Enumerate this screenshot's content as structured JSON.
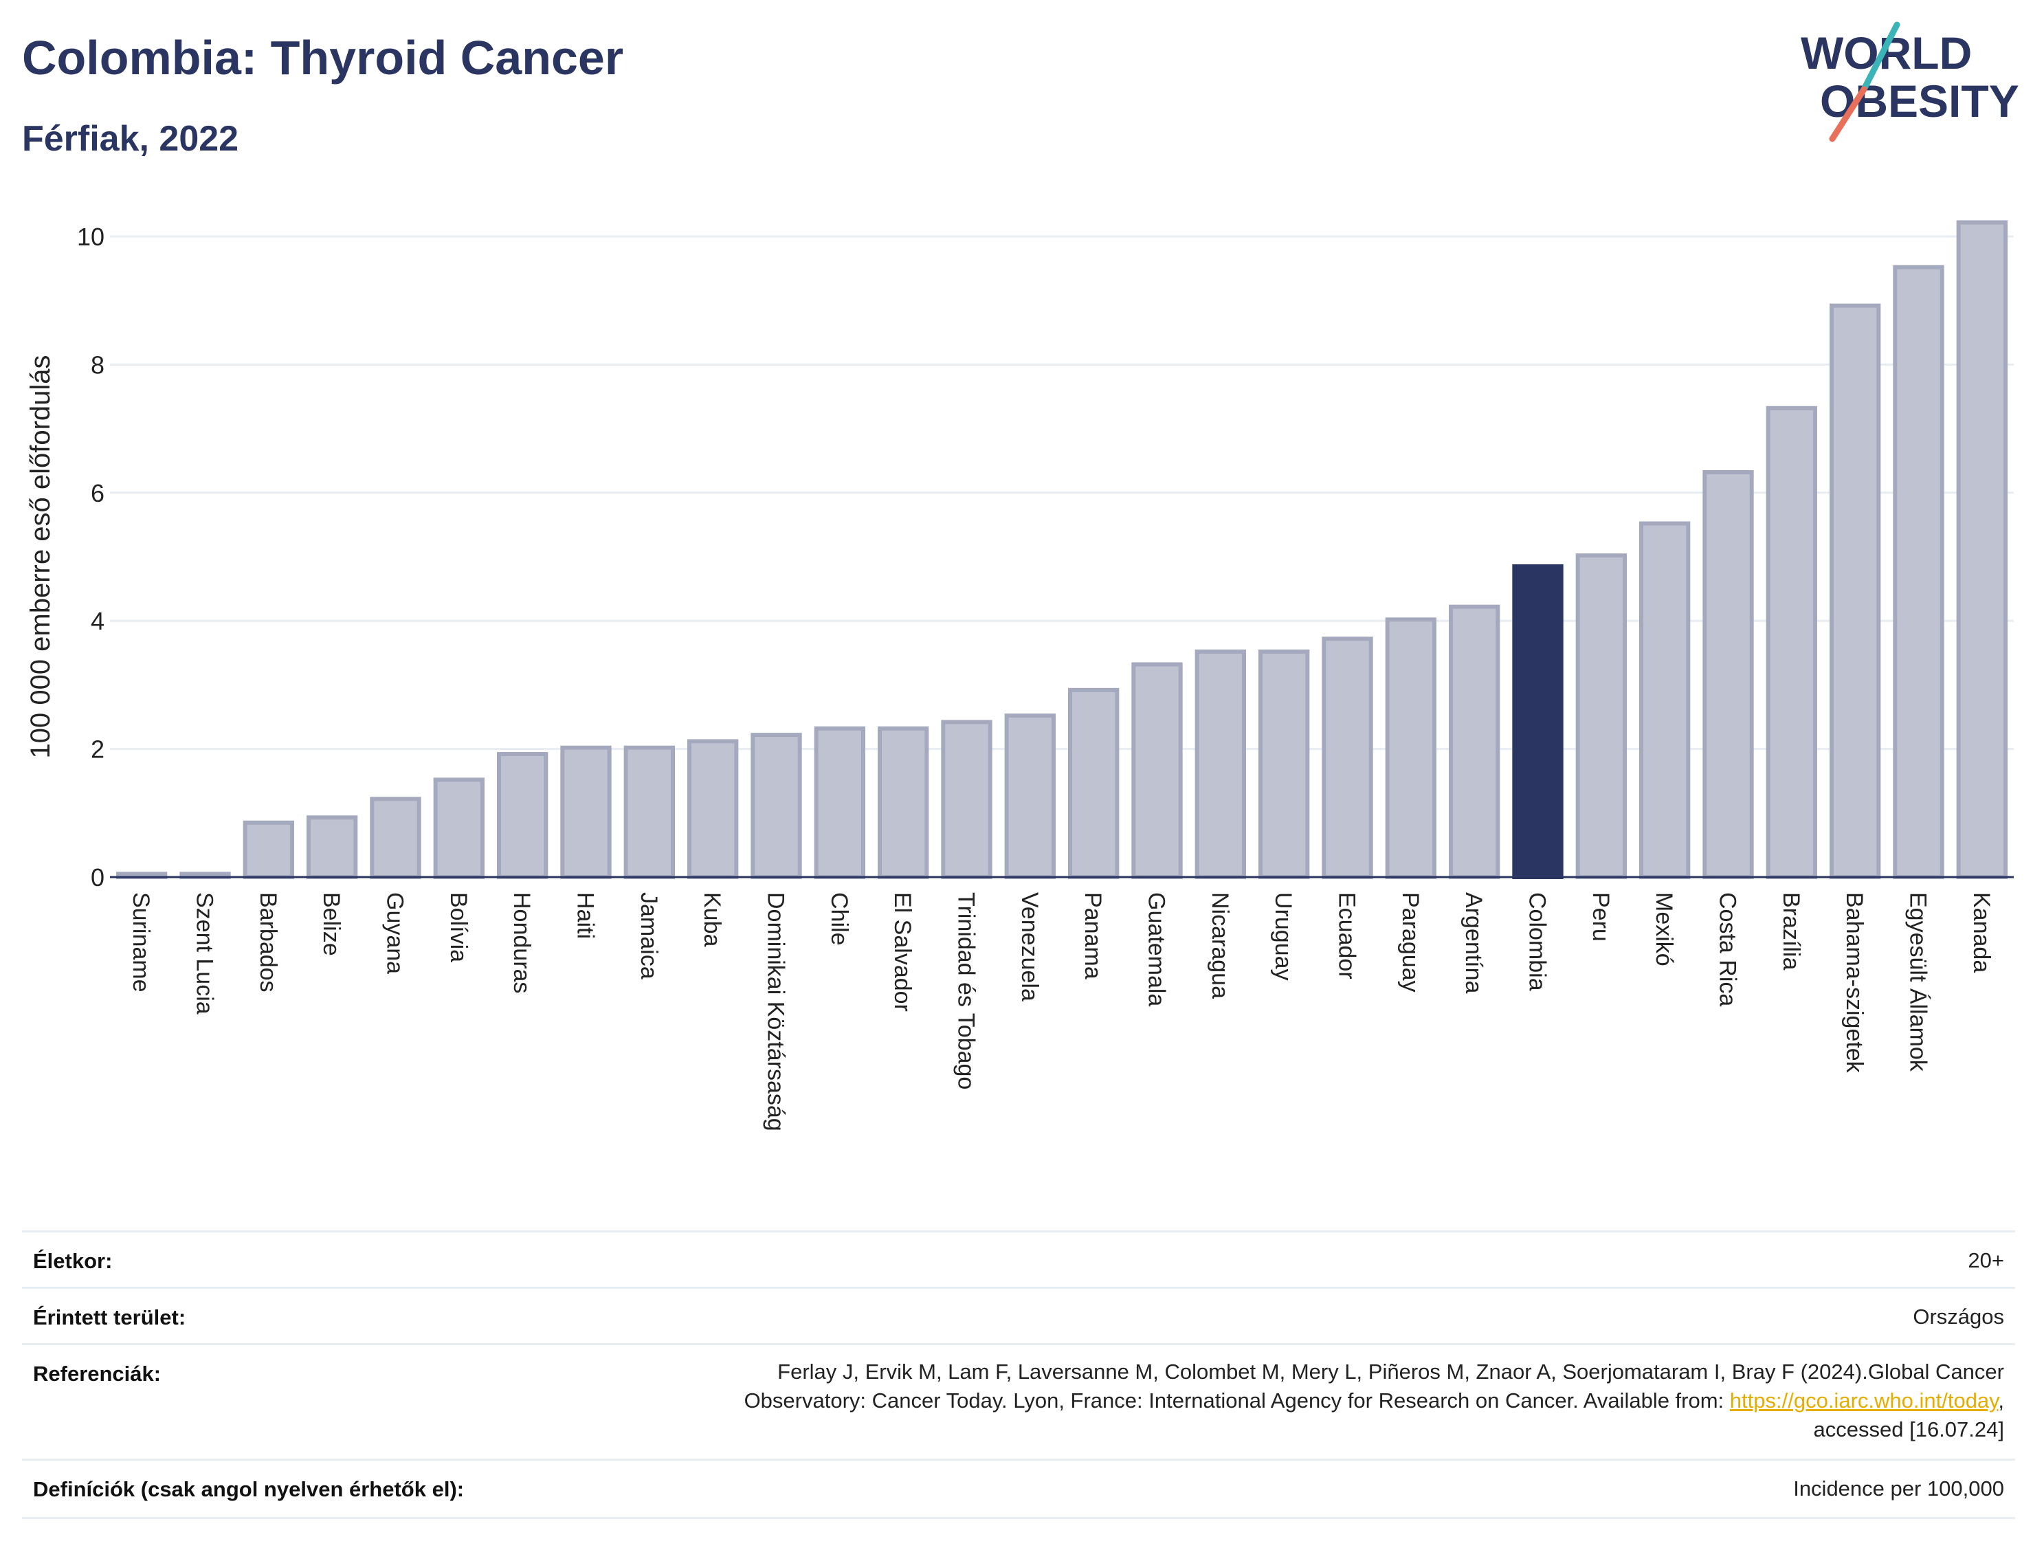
{
  "header": {
    "title": "Colombia: Thyroid Cancer",
    "subtitle": "Férfiak, 2022",
    "logo_line1": "WORLD",
    "logo_line2": "OBESITY"
  },
  "colors": {
    "bar": "#bfc3d1",
    "bar_border": "#a4a9be",
    "highlight": "#2a3562",
    "text": "#2a3562",
    "grid": "#e8edf2",
    "logo_slash_top": "#3bb4b8",
    "logo_slash_bottom": "#e8705a"
  },
  "chart_data": {
    "type": "bar",
    "title": "Colombia: Thyroid Cancer",
    "subtitle": "Férfiak, 2022",
    "ylabel": "100 000 emberre eső előfordulás",
    "xlabel": "",
    "ylim": [
      0,
      10.5
    ],
    "yticks": [
      0,
      2,
      4,
      6,
      8,
      10
    ],
    "grid": true,
    "highlight": "Colombia",
    "categories": [
      "Suriname",
      "Szent Lucia",
      "Barbados",
      "Belize",
      "Guyana",
      "Bolívia",
      "Honduras",
      "Haiti",
      "Jamaica",
      "Kuba",
      "Dominikai Köztársaság",
      "Chile",
      "El Salvador",
      "Trinidad és Tobago",
      "Venezuela",
      "Panama",
      "Guatemala",
      "Nicaragua",
      "Uruguay",
      "Ecuador",
      "Paraguay",
      "Argentína",
      "Colombia",
      "Peru",
      "Mexikó",
      "Costa Rica",
      "Brazília",
      "Bahama-szigetek",
      "Egyesült Államok",
      "Kanada"
    ],
    "values": [
      0.05,
      0.05,
      0.85,
      0.93,
      1.22,
      1.52,
      1.92,
      2.02,
      2.02,
      2.12,
      2.22,
      2.32,
      2.32,
      2.42,
      2.52,
      2.92,
      3.32,
      3.52,
      3.52,
      3.72,
      4.02,
      4.22,
      4.85,
      5.02,
      5.52,
      6.32,
      7.32,
      8.92,
      9.52,
      10.22
    ]
  },
  "info": {
    "rows": [
      {
        "label": "Életkor:",
        "value": "20+"
      },
      {
        "label": "Érintett terület:",
        "value": "Országos"
      },
      {
        "label": "Referenciák:",
        "value_line1": "Ferlay J, Ervik M, Lam F, Laversanne M, Colombet M, Mery L, Piñeros M, Znaor A, Soerjomataram I, Bray F (2024).Global Cancer",
        "value_line2": "Observatory: Cancer Today. Lyon, France: International Agency for Research on Cancer. Available from: ",
        "link": "https://gco.iarc.who.int/today",
        "value_line2_end": ",",
        "value_line3": "accessed [16.07.24]"
      },
      {
        "label": "Definíciók (csak angol nyelven érhetők el):",
        "value": "Incidence per 100,000"
      }
    ]
  }
}
